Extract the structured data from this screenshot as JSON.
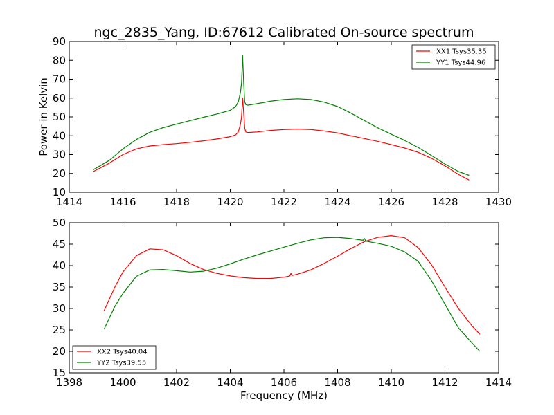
{
  "chart_data": [
    {
      "type": "line",
      "title": "ngc_2835_Yang, ID:67612 Calibrated On-source spectrum",
      "xlabel": "",
      "ylabel": "Power in Kelvin",
      "xlim": [
        1414,
        1430
      ],
      "ylim": [
        10,
        90
      ],
      "xticks": [
        1414,
        1416,
        1418,
        1420,
        1422,
        1424,
        1426,
        1428,
        1430
      ],
      "yticks": [
        10,
        20,
        30,
        40,
        50,
        60,
        70,
        80,
        90
      ],
      "legend_position": "top-right",
      "grid": false,
      "series": [
        {
          "name": "XX1 Tsys35.35",
          "color": "#ff0000",
          "x": [
            1414.9,
            1415.5,
            1416.0,
            1416.5,
            1417.0,
            1417.5,
            1418.0,
            1418.5,
            1419.0,
            1419.5,
            1420.0,
            1420.2,
            1420.3,
            1420.38,
            1420.42,
            1420.46,
            1420.5,
            1420.54,
            1420.58,
            1420.65,
            1421.0,
            1421.5,
            1422.0,
            1422.5,
            1423.0,
            1423.5,
            1424.0,
            1424.5,
            1425.0,
            1425.5,
            1426.0,
            1426.5,
            1427.0,
            1427.5,
            1428.0,
            1428.5,
            1428.9
          ],
          "y": [
            21,
            25.5,
            30,
            33,
            34.6,
            35.3,
            35.8,
            36.5,
            37.3,
            38.3,
            39.5,
            40.5,
            42,
            46,
            50,
            60,
            52,
            44,
            42,
            41.7,
            42,
            42.8,
            43.3,
            43.5,
            43.3,
            42.5,
            41.5,
            40,
            38.5,
            37,
            35.3,
            33.5,
            31.2,
            28,
            24,
            19.5,
            16.5
          ]
        },
        {
          "name": "YY1 Tsys44.96",
          "color": "#008000",
          "x": [
            1414.9,
            1415.5,
            1416.0,
            1416.5,
            1417.0,
            1417.5,
            1418.0,
            1418.5,
            1419.0,
            1419.5,
            1420.0,
            1420.2,
            1420.3,
            1420.38,
            1420.42,
            1420.46,
            1420.5,
            1420.54,
            1420.58,
            1420.65,
            1421.0,
            1421.5,
            1422.0,
            1422.5,
            1423.0,
            1423.5,
            1424.0,
            1424.5,
            1425.0,
            1425.5,
            1426.0,
            1426.5,
            1427.0,
            1427.5,
            1428.0,
            1428.5,
            1428.9
          ],
          "y": [
            22,
            27,
            33,
            38,
            41.8,
            44.3,
            46.2,
            48,
            49.8,
            51.5,
            53.5,
            55.5,
            58,
            63,
            68,
            82.5,
            68,
            58,
            56.5,
            56.2,
            57,
            58.3,
            59.2,
            59.6,
            59.2,
            57.8,
            55.5,
            52,
            48,
            44.2,
            40.8,
            37.5,
            33.8,
            29.5,
            25,
            21,
            19
          ]
        }
      ]
    },
    {
      "type": "line",
      "title": "",
      "xlabel": "Frequency (MHz)",
      "ylabel": "",
      "xlim": [
        1398,
        1414
      ],
      "ylim": [
        15,
        50
      ],
      "xticks": [
        1398,
        1400,
        1402,
        1404,
        1406,
        1408,
        1410,
        1412,
        1414
      ],
      "yticks": [
        15,
        20,
        25,
        30,
        35,
        40,
        45,
        50
      ],
      "legend_position": "bottom-left",
      "grid": false,
      "series": [
        {
          "name": "XX2 Tsys40.04",
          "color": "#ff0000",
          "x": [
            1399.3,
            1399.7,
            1400.0,
            1400.5,
            1401.0,
            1401.5,
            1402.0,
            1402.5,
            1403.0,
            1403.5,
            1404.0,
            1404.5,
            1405.0,
            1405.5,
            1406.0,
            1406.22,
            1406.26,
            1406.3,
            1406.5,
            1407.0,
            1407.5,
            1408.0,
            1408.5,
            1409.0,
            1409.5,
            1410.0,
            1410.5,
            1411.0,
            1411.5,
            1412.0,
            1412.5,
            1413.0,
            1413.3
          ],
          "y": [
            29.5,
            35,
            38.5,
            42.3,
            43.9,
            43.7,
            42.3,
            40.5,
            39.1,
            38.2,
            37.6,
            37.2,
            37.0,
            37.0,
            37.3,
            37.6,
            38.2,
            37.7,
            38.0,
            39.0,
            40.5,
            42.2,
            44.0,
            45.6,
            46.6,
            47.0,
            46.5,
            44.2,
            40.2,
            35.0,
            30.0,
            26.0,
            24.0
          ]
        },
        {
          "name": "YY2 Tsys39.55",
          "color": "#008000",
          "x": [
            1399.3,
            1399.7,
            1400.0,
            1400.5,
            1401.0,
            1401.5,
            1402.0,
            1402.5,
            1403.0,
            1403.5,
            1404.0,
            1404.5,
            1405.0,
            1405.5,
            1406.0,
            1406.5,
            1407.0,
            1407.5,
            1408.0,
            1408.5,
            1408.95,
            1409.0,
            1409.05,
            1409.5,
            1410.0,
            1410.5,
            1411.0,
            1411.5,
            1412.0,
            1412.5,
            1413.0,
            1413.3
          ],
          "y": [
            25.2,
            30.5,
            33.5,
            37.5,
            39.0,
            39.1,
            38.8,
            38.5,
            38.7,
            39.4,
            40.4,
            41.5,
            42.5,
            43.4,
            44.3,
            45.2,
            46.0,
            46.5,
            46.6,
            46.3,
            45.9,
            46.3,
            45.7,
            45.2,
            44.5,
            43.2,
            41.0,
            36.5,
            31.0,
            25.5,
            22.0,
            20.0
          ]
        }
      ]
    }
  ]
}
